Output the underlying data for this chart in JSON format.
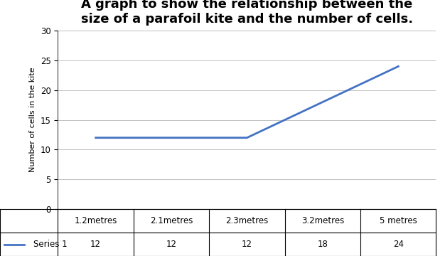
{
  "title": "A graph to show the relationship between the\nsize of a parafoil kite and the number of cells.",
  "ylabel": "Number of cells in the kite",
  "categories": [
    "1.2metres",
    "2.1metres",
    "2.3metres",
    "3.2metres",
    "5 metres"
  ],
  "values": [
    12,
    12,
    12,
    18,
    24
  ],
  "ylim": [
    0,
    30
  ],
  "yticks": [
    0,
    5,
    10,
    15,
    20,
    25,
    30
  ],
  "line_color": "#4472C4",
  "legend_label": "Series 1",
  "table_values": [
    "12",
    "12",
    "12",
    "18",
    "24"
  ],
  "background_color": "#ffffff",
  "title_fontsize": 13,
  "axis_label_fontsize": 8,
  "tick_fontsize": 8.5,
  "table_fontsize": 8.5
}
